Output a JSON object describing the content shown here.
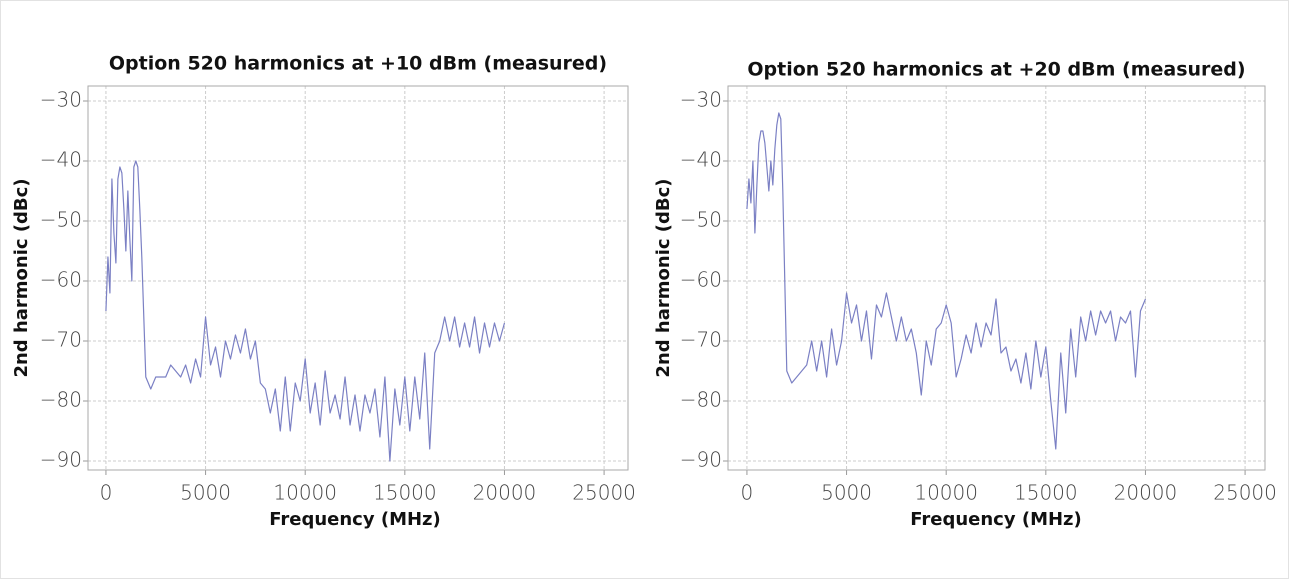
{
  "chart_data": [
    {
      "type": "line",
      "title": "Option 520 harmonics at +10 dBm (measured)",
      "xlabel": "Frequency (MHz)",
      "ylabel": "2nd harmonic (dBc)",
      "x": [
        0,
        100,
        200,
        300,
        400,
        500,
        600,
        700,
        800,
        900,
        1000,
        1100,
        1200,
        1300,
        1400,
        1500,
        1600,
        1700,
        1800,
        2000,
        2250,
        2500,
        2750,
        3000,
        3250,
        3500,
        3750,
        4000,
        4250,
        4500,
        4750,
        5000,
        5250,
        5500,
        5750,
        6000,
        6250,
        6500,
        6750,
        7000,
        7250,
        7500,
        7750,
        8000,
        8250,
        8500,
        8750,
        9000,
        9250,
        9500,
        9750,
        10000,
        10250,
        10500,
        10750,
        11000,
        11250,
        11500,
        11750,
        12000,
        12250,
        12500,
        12750,
        13000,
        13250,
        13500,
        13750,
        14000,
        14250,
        14500,
        14750,
        15000,
        15250,
        15500,
        15750,
        16000,
        16250,
        16500,
        16750,
        17000,
        17250,
        17500,
        17750,
        18000,
        18250,
        18500,
        18750,
        19000,
        19250,
        19500,
        19750,
        20000
      ],
      "values": [
        -65,
        -56,
        -62,
        -43,
        -52,
        -57,
        -43,
        -41,
        -42,
        -48,
        -55,
        -45,
        -53,
        -60,
        -41,
        -40,
        -41,
        -48,
        -56,
        -76,
        -78,
        -76,
        -76,
        -76,
        -74,
        -75,
        -76,
        -74,
        -77,
        -73,
        -76,
        -66,
        -74,
        -71,
        -76,
        -70,
        -73,
        -69,
        -72,
        -68,
        -73,
        -70,
        -77,
        -78,
        -82,
        -78,
        -85,
        -76,
        -85,
        -77,
        -80,
        -73,
        -82,
        -77,
        -84,
        -75,
        -82,
        -79,
        -83,
        -76,
        -84,
        -79,
        -85,
        -79,
        -82,
        -78,
        -86,
        -76,
        -90,
        -78,
        -84,
        -76,
        -85,
        -76,
        -83,
        -72,
        -88,
        -72,
        -70,
        -66,
        -70,
        -66,
        -71,
        -67,
        -71,
        -66,
        -72,
        -67,
        -71,
        -67,
        -70,
        -67
      ],
      "color": "#7b80c4",
      "xlim": [
        -900,
        26200
      ],
      "ylim": [
        -91.5,
        -27.5
      ],
      "xticks": [
        0,
        5000,
        10000,
        15000,
        20000,
        25000
      ],
      "yticks": [
        {
          "value": -30,
          "label": "−30"
        },
        {
          "value": -40,
          "label": "−40"
        },
        {
          "value": -50,
          "label": "−50"
        },
        {
          "value": -60,
          "label": "−60"
        },
        {
          "value": -70,
          "label": "−70"
        },
        {
          "value": -80,
          "label": "−80"
        },
        {
          "value": -90,
          "label": "−90"
        }
      ],
      "grid": true
    },
    {
      "type": "line",
      "title": "Option 520 harmonics at +20 dBm (measured)",
      "xlabel": "Frequency (MHz)",
      "ylabel": "2nd harmonic (dBc)",
      "x": [
        0,
        100,
        200,
        300,
        400,
        500,
        600,
        700,
        800,
        900,
        1000,
        1100,
        1200,
        1300,
        1400,
        1500,
        1600,
        1700,
        1800,
        2000,
        2250,
        2500,
        2750,
        3000,
        3250,
        3500,
        3750,
        4000,
        4250,
        4500,
        4750,
        5000,
        5250,
        5500,
        5750,
        6000,
        6250,
        6500,
        6750,
        7000,
        7250,
        7500,
        7750,
        8000,
        8250,
        8500,
        8750,
        9000,
        9250,
        9500,
        9750,
        10000,
        10250,
        10500,
        10750,
        11000,
        11250,
        11500,
        11750,
        12000,
        12250,
        12500,
        12750,
        13000,
        13250,
        13500,
        13750,
        14000,
        14250,
        14500,
        14750,
        15000,
        15250,
        15500,
        15750,
        16000,
        16250,
        16500,
        16750,
        17000,
        17250,
        17500,
        17750,
        18000,
        18250,
        18500,
        18750,
        19000,
        19250,
        19500,
        19750,
        20000
      ],
      "values": [
        -48,
        -43,
        -47,
        -40,
        -52,
        -44,
        -37,
        -35,
        -35,
        -37,
        -41,
        -45,
        -40,
        -44,
        -38,
        -34,
        -32,
        -33,
        -45,
        -75,
        -77,
        -76,
        -75,
        -74,
        -70,
        -75,
        -70,
        -76,
        -68,
        -74,
        -70,
        -62,
        -67,
        -64,
        -70,
        -65,
        -73,
        -64,
        -66,
        -62,
        -66,
        -70,
        -66,
        -70,
        -68,
        -72,
        -79,
        -70,
        -74,
        -68,
        -67,
        -64,
        -67,
        -76,
        -73,
        -69,
        -72,
        -67,
        -71,
        -67,
        -69,
        -63,
        -72,
        -71,
        -75,
        -73,
        -77,
        -72,
        -78,
        -70,
        -76,
        -71,
        -80,
        -88,
        -72,
        -82,
        -68,
        -76,
        -66,
        -70,
        -65,
        -69,
        -65,
        -67,
        -65,
        -70,
        -66,
        -67,
        -65,
        -76,
        -65,
        -63
      ],
      "color": "#7b80c4",
      "xlim": [
        -950,
        26000
      ],
      "ylim": [
        -91.5,
        -27.5
      ],
      "xticks": [
        0,
        5000,
        10000,
        15000,
        20000,
        25000
      ],
      "yticks": [
        {
          "value": -30,
          "label": "−30"
        },
        {
          "value": -40,
          "label": "−40"
        },
        {
          "value": -50,
          "label": "−50"
        },
        {
          "value": -60,
          "label": "−60"
        },
        {
          "value": -70,
          "label": "−70"
        },
        {
          "value": -80,
          "label": "−80"
        },
        {
          "value": -90,
          "label": "−90"
        }
      ],
      "grid": true
    }
  ]
}
